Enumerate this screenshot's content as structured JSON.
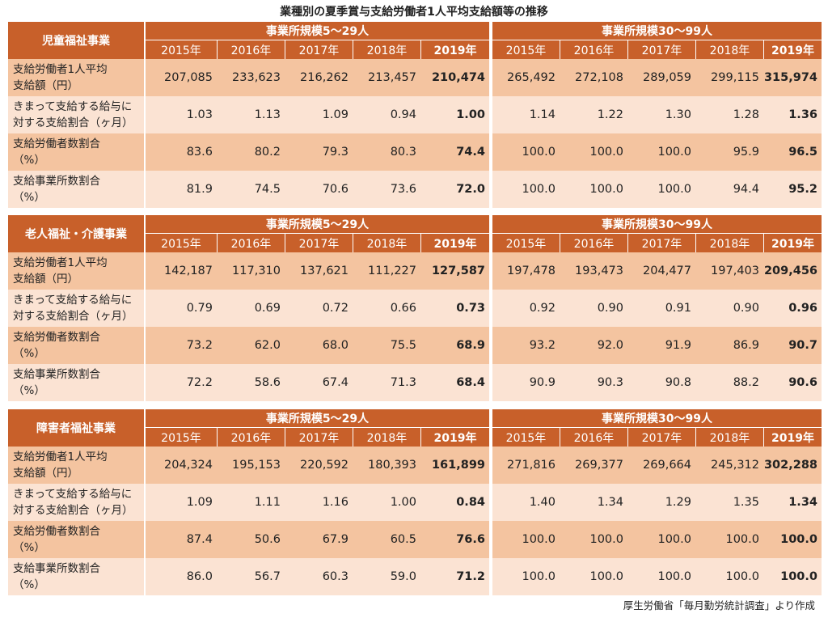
{
  "title": "業種別の夏季賞与支給労働者1人平均支給額等の推移",
  "footer": "厚生労働省「毎月勤労統計調査」より作成",
  "group_labels": [
    "事業所規模5～29人",
    "事業所規模30～99人"
  ],
  "years": [
    "2015年",
    "2016年",
    "2017年",
    "2018年",
    "2019年"
  ],
  "row_labels": [
    [
      "支給労働者1人平均",
      "支給額（円）"
    ],
    [
      "きまって支給する給与に",
      "対する支給割合（ヶ月）"
    ],
    [
      "支給労働者数割合",
      "（%）"
    ],
    [
      "支給事業所数割合",
      "（%）"
    ]
  ],
  "sections": [
    {
      "name": "児童福祉事業",
      "g1": [
        [
          "207,085",
          "233,623",
          "216,262",
          "213,457",
          "210,474"
        ],
        [
          "1.03",
          "1.13",
          "1.09",
          "0.94",
          "1.00"
        ],
        [
          "83.6",
          "80.2",
          "79.3",
          "80.3",
          "74.4"
        ],
        [
          "81.9",
          "74.5",
          "70.6",
          "73.6",
          "72.0"
        ]
      ],
      "g2": [
        [
          "265,492",
          "272,108",
          "289,059",
          "299,115",
          "315,974"
        ],
        [
          "1.14",
          "1.22",
          "1.30",
          "1.28",
          "1.36"
        ],
        [
          "100.0",
          "100.0",
          "100.0",
          "95.9",
          "96.5"
        ],
        [
          "100.0",
          "100.0",
          "100.0",
          "94.4",
          "95.2"
        ]
      ]
    },
    {
      "name": "老人福祉・介護事業",
      "g1": [
        [
          "142,187",
          "117,310",
          "137,621",
          "111,227",
          "127,587"
        ],
        [
          "0.79",
          "0.69",
          "0.72",
          "0.66",
          "0.73"
        ],
        [
          "73.2",
          "62.0",
          "68.0",
          "75.5",
          "68.9"
        ],
        [
          "72.2",
          "58.6",
          "67.4",
          "71.3",
          "68.4"
        ]
      ],
      "g2": [
        [
          "197,478",
          "193,473",
          "204,477",
          "197,403",
          "209,456"
        ],
        [
          "0.92",
          "0.90",
          "0.91",
          "0.90",
          "0.96"
        ],
        [
          "93.2",
          "92.0",
          "91.9",
          "86.9",
          "90.7"
        ],
        [
          "90.9",
          "90.3",
          "90.8",
          "88.2",
          "90.6"
        ]
      ]
    },
    {
      "name": "障害者福祉事業",
      "g1": [
        [
          "204,324",
          "195,153",
          "220,592",
          "180,393",
          "161,899"
        ],
        [
          "1.09",
          "1.11",
          "1.16",
          "1.00",
          "0.84"
        ],
        [
          "87.4",
          "50.6",
          "67.9",
          "60.5",
          "76.6"
        ],
        [
          "86.0",
          "56.7",
          "60.3",
          "59.0",
          "71.2"
        ]
      ],
      "g2": [
        [
          "271,816",
          "269,377",
          "269,664",
          "245,312",
          "302,288"
        ],
        [
          "1.40",
          "1.34",
          "1.29",
          "1.35",
          "1.34"
        ],
        [
          "100.0",
          "100.0",
          "100.0",
          "100.0",
          "100.0"
        ],
        [
          "100.0",
          "100.0",
          "100.0",
          "100.0",
          "100.0"
        ]
      ]
    }
  ]
}
